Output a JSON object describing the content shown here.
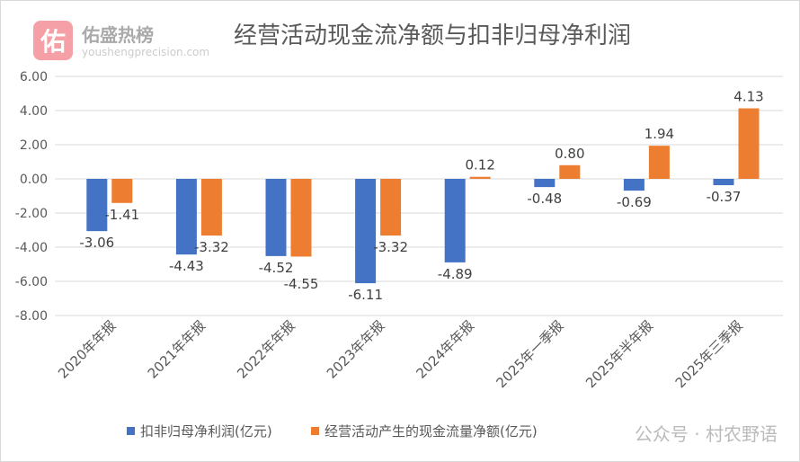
{
  "watermark": {
    "logo_char": "佑",
    "brand": "佑盛热榜",
    "site": "youshengprecision.com",
    "footer": "公众号 · 村农野语"
  },
  "chart_data": {
    "type": "bar",
    "title": "经营活动现金流净额与扣非归母净利润",
    "categories": [
      "2020年年报",
      "2021年年报",
      "2022年年报",
      "2023年年报",
      "2024年年报",
      "2025年一季报",
      "2025年半年报",
      "2025年三季报"
    ],
    "series": [
      {
        "name": "扣非归母净利润(亿元)",
        "color": "#4472c4",
        "values": [
          -3.06,
          -4.43,
          -4.52,
          -6.11,
          -4.89,
          -0.48,
          -0.69,
          -0.37
        ]
      },
      {
        "name": "经营活动产生的现金流量净额(亿元)",
        "color": "#ed7d31",
        "values": [
          -1.41,
          -3.32,
          -4.55,
          -3.32,
          0.12,
          0.8,
          1.94,
          4.13
        ]
      }
    ],
    "ylim": [
      -8,
      6
    ],
    "yticks": [
      "6.00",
      "4.00",
      "2.00",
      "0.00",
      "-2.00",
      "-4.00",
      "-6.00",
      "-8.00"
    ],
    "grid": true,
    "legend": "bottom"
  }
}
